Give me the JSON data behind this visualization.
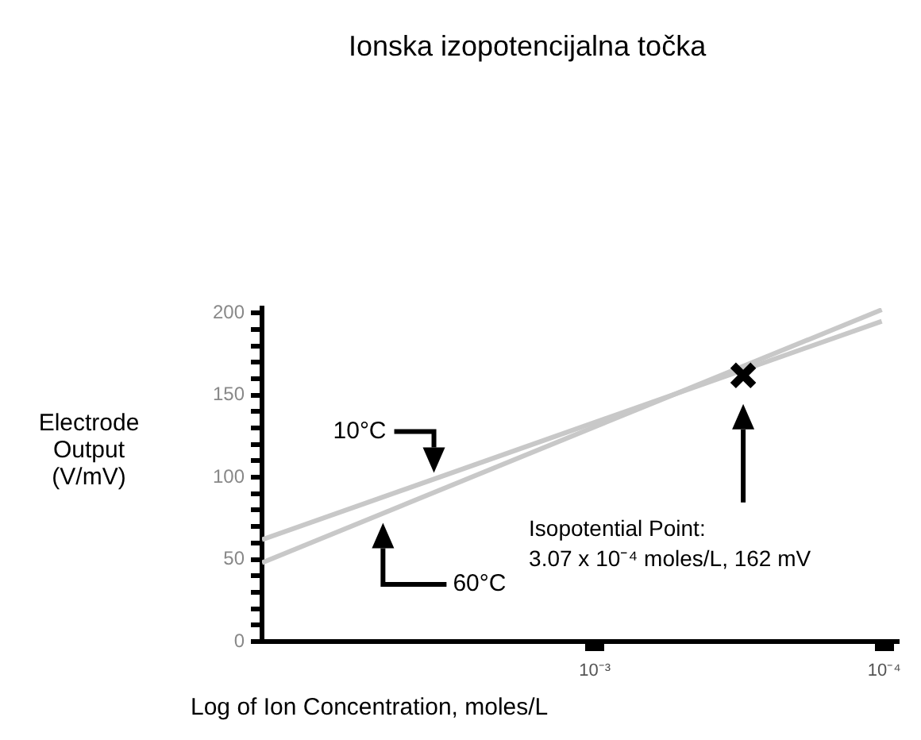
{
  "chart_data": {
    "type": "line",
    "title": "Ionska izopotencijalna točka",
    "xlabel": "Log of Ion Concentration, moles/L",
    "ylabel": "Electrode Output (V/mV)",
    "x": [
      0.0141,
      0.000102
    ],
    "log": "x",
    "series": [
      {
        "name": "10°C",
        "color": "#c8c8c8",
        "values": [
          62,
          195
        ]
      },
      {
        "name": "60°C",
        "color": "#c8c8c8",
        "values": [
          48,
          202
        ]
      },
      {
        "type": "scatter",
        "color": "#000000",
        "x": [
          0.000307
        ],
        "values": [
          162
        ],
        "marker": "cross"
      }
    ],
    "xlim": [
      0.0141,
      8.91e-05
    ],
    "xticks": [
      {
        "value": 0.001,
        "label": "10⁻³"
      },
      {
        "value": 0.0001,
        "label": "10⁻⁴"
      }
    ],
    "ylim": [
      0,
      203
    ],
    "yticks": [
      0,
      {
        "value": 10,
        "label": null
      },
      {
        "value": 20,
        "label": null
      },
      {
        "value": 30,
        "label": null
      },
      {
        "value": 40,
        "label": null
      },
      50,
      {
        "value": 60,
        "label": null
      },
      {
        "value": 70,
        "label": null
      },
      {
        "value": 80,
        "label": null
      },
      {
        "value": 90,
        "label": null
      },
      100,
      {
        "value": 110,
        "label": null
      },
      {
        "value": 120,
        "label": null
      },
      {
        "value": 130,
        "label": null
      },
      {
        "value": 140,
        "label": null
      },
      150,
      {
        "value": 160,
        "label": null
      },
      {
        "value": 170,
        "label": null
      },
      {
        "value": 180,
        "label": null
      },
      {
        "value": 190,
        "label": null
      },
      200
    ],
    "annotations": [
      "Isopotential Point:\n3.07 x 10⁻⁴ moles/L, 162 mV"
    ],
    "grid": false,
    "legend": false,
    "marker": "none",
    "line_style": "solid"
  }
}
